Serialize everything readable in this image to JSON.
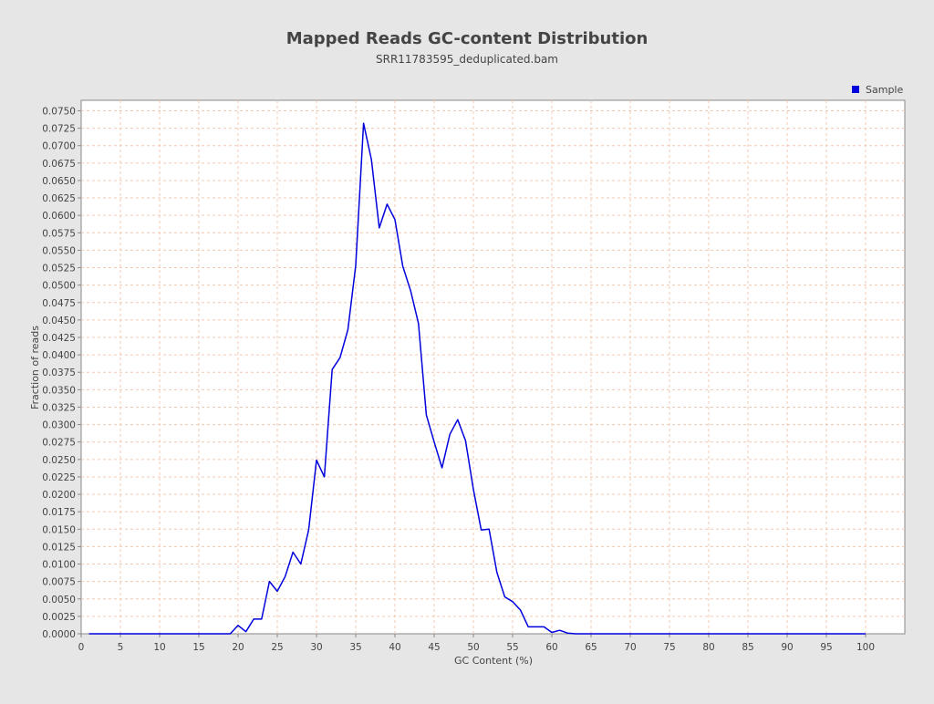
{
  "chart_data": {
    "type": "line",
    "title": "Mapped Reads GC-content Distribution",
    "subtitle": "SRR11783595_deduplicated.bam",
    "xlabel": "GC Content (%)",
    "ylabel": "Fraction of reads",
    "xlim": [
      0,
      105
    ],
    "ylim": [
      0,
      0.0765
    ],
    "x_ticks": [
      0,
      5,
      10,
      15,
      20,
      25,
      30,
      35,
      40,
      45,
      50,
      55,
      60,
      65,
      70,
      75,
      80,
      85,
      90,
      95,
      100
    ],
    "y_ticks": [
      "0.0000",
      "0.0025",
      "0.0050",
      "0.0075",
      "0.0100",
      "0.0125",
      "0.0150",
      "0.0175",
      "0.0200",
      "0.0225",
      "0.0250",
      "0.0275",
      "0.0300",
      "0.0325",
      "0.0350",
      "0.0375",
      "0.0400",
      "0.0425",
      "0.0450",
      "0.0475",
      "0.0500",
      "0.0525",
      "0.0550",
      "0.0575",
      "0.0600",
      "0.0625",
      "0.0650",
      "0.0675",
      "0.0700",
      "0.0725",
      "0.0750"
    ],
    "grid": true,
    "legend_position": "top-right",
    "series": [
      {
        "name": "Sample",
        "color": "#0000dd",
        "x": [
          1,
          2,
          3,
          4,
          5,
          6,
          7,
          8,
          9,
          10,
          11,
          12,
          13,
          14,
          15,
          16,
          17,
          18,
          19,
          20,
          21,
          22,
          23,
          24,
          25,
          26,
          27,
          28,
          29,
          30,
          31,
          32,
          33,
          34,
          35,
          36,
          37,
          38,
          39,
          40,
          41,
          42,
          43,
          44,
          45,
          46,
          47,
          48,
          49,
          50,
          51,
          52,
          53,
          54,
          55,
          56,
          57,
          58,
          59,
          60,
          61,
          62,
          63,
          64,
          65,
          66,
          67,
          68,
          69,
          70,
          71,
          72,
          73,
          74,
          75,
          76,
          77,
          78,
          79,
          80,
          81,
          82,
          83,
          84,
          85,
          86,
          87,
          88,
          89,
          90,
          91,
          92,
          93,
          94,
          95,
          96,
          97,
          98,
          99,
          100
        ],
        "values": [
          0,
          0,
          0,
          0,
          0,
          0,
          0,
          0,
          0,
          0,
          0,
          0,
          0,
          0,
          0,
          0,
          0,
          0,
          0,
          0.0012,
          0.0003,
          0.0021,
          0.0021,
          0.0075,
          0.0061,
          0.0082,
          0.0117,
          0.01,
          0.0149,
          0.0249,
          0.0225,
          0.0379,
          0.0396,
          0.0436,
          0.0528,
          0.0732,
          0.068,
          0.0582,
          0.0616,
          0.0594,
          0.0527,
          0.0492,
          0.0445,
          0.0314,
          0.0275,
          0.0238,
          0.0286,
          0.0307,
          0.0277,
          0.0207,
          0.0149,
          0.015,
          0.0088,
          0.0053,
          0.0046,
          0.0034,
          0.001,
          0.001,
          0.001,
          0.0002,
          0.0005,
          0.0001,
          0,
          0,
          0,
          0,
          0,
          0,
          0,
          0,
          0,
          0,
          0,
          0,
          0,
          0,
          0,
          0,
          0,
          0,
          0,
          0,
          0,
          0,
          0,
          0,
          0,
          0,
          0,
          0,
          0,
          0,
          0,
          0,
          0,
          0,
          0,
          0,
          0,
          0
        ]
      }
    ]
  }
}
